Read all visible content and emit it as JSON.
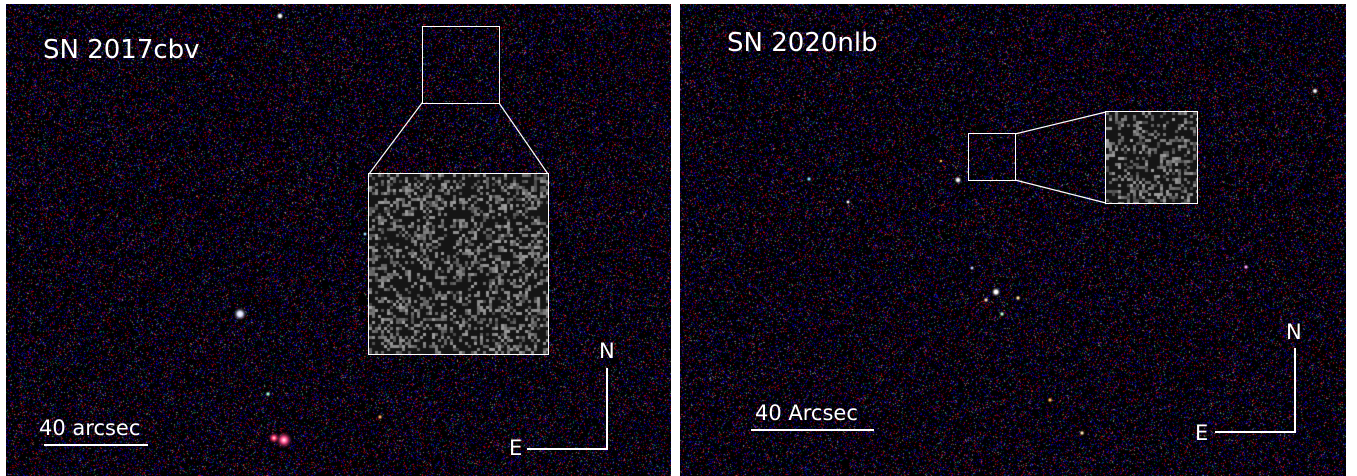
{
  "panels": [
    {
      "title": "SN 2017cbv",
      "scale_label": "40 arcsec",
      "north_label": "N",
      "east_label": "E"
    },
    {
      "title": "SN 2020nlb",
      "scale_label": "40 Arcsec",
      "north_label": "N",
      "east_label": "E"
    }
  ],
  "colors": {
    "background": "#000000",
    "overlay": "#ffffff"
  }
}
